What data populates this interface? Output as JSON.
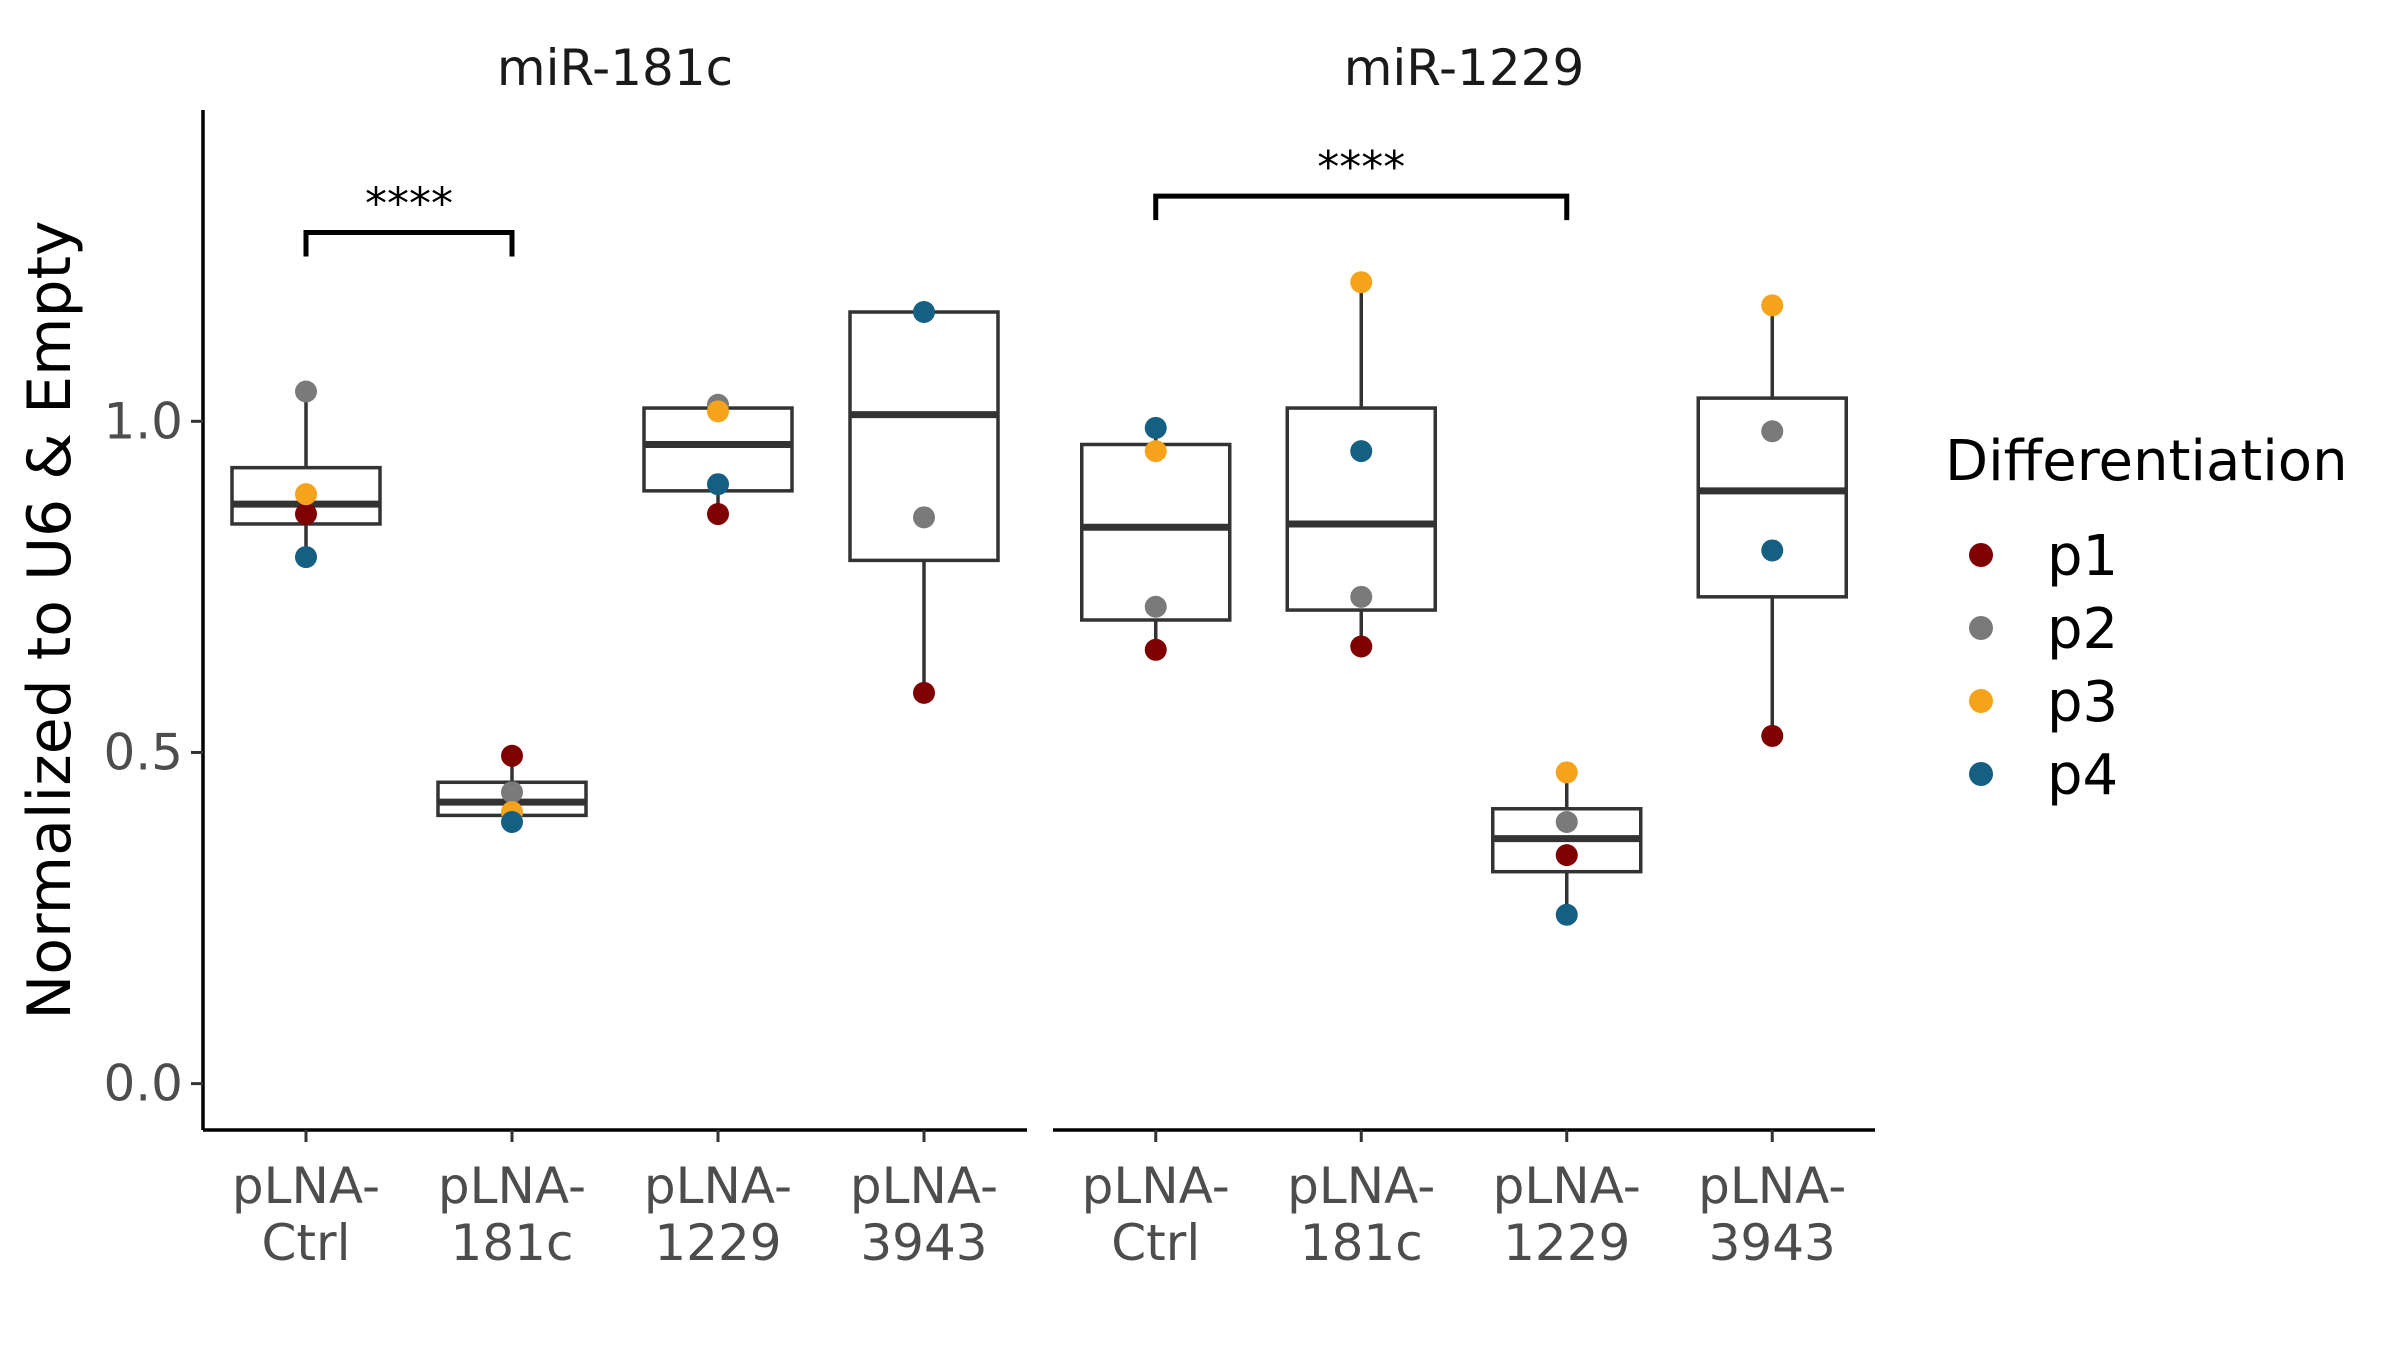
{
  "chart_data": {
    "type": "box",
    "ylabel": "Normalized to U6 & Empty",
    "yticks": [
      0.0,
      0.5,
      1.0
    ],
    "ytick_labels": [
      "0.0",
      "0.5",
      "1.0"
    ],
    "ylim": [
      -0.07,
      1.47
    ],
    "legend": {
      "title": "Differentiation",
      "position": "right",
      "entries": [
        {
          "key": "p1",
          "label": "p1",
          "color": "#7f0000"
        },
        {
          "key": "p2",
          "label": "p2",
          "color": "#7a7a7a"
        },
        {
          "key": "p3",
          "label": "p3",
          "color": "#f5a31a"
        },
        {
          "key": "p4",
          "label": "p4",
          "color": "#145f82"
        }
      ]
    },
    "panels": [
      {
        "title": "miR-181c",
        "categories": [
          {
            "line1": "pLNA-",
            "line2": "Ctrl"
          },
          {
            "line1": "pLNA-",
            "line2": "181c"
          },
          {
            "line1": "pLNA-",
            "line2": "1229"
          },
          {
            "line1": "pLNA-",
            "line2": "3943"
          }
        ],
        "boxes": [
          {
            "low": 0.795,
            "q1": 0.845,
            "median": 0.875,
            "q3": 0.93,
            "high": 1.045,
            "points": {
              "p1": 0.86,
              "p2": 1.045,
              "p3": 0.89,
              "p4": 0.795
            }
          },
          {
            "low": 0.395,
            "q1": 0.405,
            "median": 0.425,
            "q3": 0.455,
            "high": 0.495,
            "points": {
              "p1": 0.495,
              "p2": 0.44,
              "p3": 0.41,
              "p4": 0.395
            }
          },
          {
            "low": 0.86,
            "q1": 0.895,
            "median": 0.965,
            "q3": 1.02,
            "high": 1.025,
            "points": {
              "p1": 0.86,
              "p2": 1.025,
              "p3": 1.015,
              "p4": 0.905
            }
          },
          {
            "low": 0.59,
            "q1": 0.79,
            "median": 1.01,
            "q3": 1.165,
            "high": 1.165,
            "points": {
              "p1": 0.59,
              "p2": 0.855,
              "p4": 1.165
            }
          }
        ],
        "significance": [
          {
            "from": 0,
            "to": 1,
            "y": 1.285,
            "label": "****"
          }
        ]
      },
      {
        "title": "miR-1229",
        "categories": [
          {
            "line1": "pLNA-",
            "line2": "Ctrl"
          },
          {
            "line1": "pLNA-",
            "line2": "181c"
          },
          {
            "line1": "pLNA-",
            "line2": "1229"
          },
          {
            "line1": "pLNA-",
            "line2": "3943"
          }
        ],
        "boxes": [
          {
            "low": 0.655,
            "q1": 0.7,
            "median": 0.84,
            "q3": 0.965,
            "high": 0.99,
            "points": {
              "p1": 0.655,
              "p2": 0.72,
              "p3": 0.955,
              "p4": 0.99
            }
          },
          {
            "low": 0.66,
            "q1": 0.715,
            "median": 0.845,
            "q3": 1.02,
            "high": 1.21,
            "points": {
              "p1": 0.66,
              "p2": 0.735,
              "p3": 1.21,
              "p4": 0.955
            }
          },
          {
            "low": 0.255,
            "q1": 0.32,
            "median": 0.37,
            "q3": 0.415,
            "high": 0.47,
            "points": {
              "p1": 0.345,
              "p2": 0.395,
              "p3": 0.47,
              "p4": 0.255
            }
          },
          {
            "low": 0.525,
            "q1": 0.735,
            "median": 0.895,
            "q3": 1.035,
            "high": 1.175,
            "points": {
              "p1": 0.525,
              "p2": 0.985,
              "p3": 1.175,
              "p4": 0.805
            }
          }
        ],
        "significance": [
          {
            "from": 0,
            "to": 2,
            "y": 1.34,
            "label": "****"
          }
        ]
      }
    ]
  }
}
